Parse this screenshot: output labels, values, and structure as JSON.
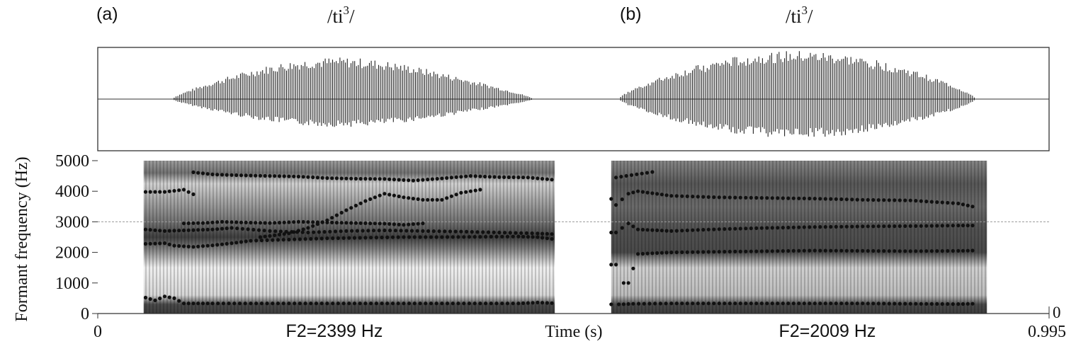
{
  "panels": [
    {
      "id": "a",
      "tag": "(a)",
      "word_base": "/ti",
      "word_sup": "3",
      "word_end": "/",
      "f2_label": "F2=2399 Hz",
      "formant_tracks": [
        [
          [
            0.05,
            520
          ],
          [
            0.06,
            430
          ],
          [
            0.07,
            560
          ],
          [
            0.08,
            500
          ],
          [
            0.09,
            330
          ],
          [
            0.12,
            330
          ],
          [
            0.16,
            330
          ],
          [
            0.2,
            330
          ],
          [
            0.24,
            330
          ],
          [
            0.28,
            330
          ],
          [
            0.32,
            330
          ],
          [
            0.36,
            330
          ],
          [
            0.4,
            330
          ],
          [
            0.44,
            330
          ],
          [
            0.46,
            360
          ],
          [
            0.475,
            340
          ]
        ],
        [
          [
            0.05,
            2280
          ],
          [
            0.07,
            2300
          ],
          [
            0.08,
            2220
          ],
          [
            0.1,
            2180
          ],
          [
            0.12,
            2230
          ],
          [
            0.14,
            2300
          ],
          [
            0.16,
            2380
          ],
          [
            0.2,
            2420
          ],
          [
            0.24,
            2460
          ],
          [
            0.28,
            2480
          ],
          [
            0.32,
            2500
          ],
          [
            0.36,
            2500
          ],
          [
            0.4,
            2510
          ],
          [
            0.44,
            2520
          ],
          [
            0.46,
            2500
          ],
          [
            0.475,
            2440
          ]
        ],
        [
          [
            0.05,
            2750
          ],
          [
            0.07,
            2700
          ],
          [
            0.09,
            2720
          ],
          [
            0.12,
            2750
          ],
          [
            0.14,
            2800
          ],
          [
            0.18,
            2700
          ],
          [
            0.22,
            2650
          ],
          [
            0.26,
            2700
          ],
          [
            0.3,
            2720
          ],
          [
            0.34,
            2700
          ],
          [
            0.38,
            2680
          ],
          [
            0.42,
            2650
          ],
          [
            0.46,
            2620
          ],
          [
            0.475,
            2600
          ]
        ],
        [
          [
            0.09,
            2950
          ],
          [
            0.11,
            2960
          ],
          [
            0.13,
            3000
          ],
          [
            0.15,
            2980
          ],
          [
            0.18,
            2960
          ],
          [
            0.21,
            3000
          ],
          [
            0.24,
            2980
          ],
          [
            0.27,
            2960
          ],
          [
            0.3,
            2940
          ],
          [
            0.32,
            2900
          ],
          [
            0.34,
            2950
          ]
        ],
        [
          [
            0.17,
            2500
          ],
          [
            0.2,
            2620
          ],
          [
            0.22,
            2800
          ],
          [
            0.24,
            3050
          ],
          [
            0.26,
            3380
          ],
          [
            0.28,
            3680
          ],
          [
            0.3,
            3920
          ],
          [
            0.32,
            3800
          ],
          [
            0.34,
            3720
          ],
          [
            0.36,
            3720
          ],
          [
            0.38,
            3950
          ],
          [
            0.4,
            4050
          ]
        ],
        [
          [
            0.05,
            3980
          ],
          [
            0.07,
            3980
          ],
          [
            0.09,
            4050
          ],
          [
            0.1,
            3900
          ]
        ],
        [
          [
            0.1,
            4620
          ],
          [
            0.12,
            4550
          ],
          [
            0.15,
            4520
          ],
          [
            0.18,
            4500
          ],
          [
            0.21,
            4480
          ],
          [
            0.24,
            4430
          ],
          [
            0.27,
            4410
          ],
          [
            0.3,
            4400
          ],
          [
            0.33,
            4350
          ],
          [
            0.36,
            4420
          ],
          [
            0.39,
            4500
          ],
          [
            0.42,
            4460
          ],
          [
            0.45,
            4450
          ],
          [
            0.475,
            4380
          ]
        ]
      ]
    },
    {
      "id": "b",
      "tag": "(b)",
      "word_base": "/ti",
      "word_sup": "3",
      "word_end": "/",
      "f2_label": "F2=2009 Hz",
      "formant_tracks": [
        [
          [
            0.537,
            300
          ],
          [
            0.545,
            300
          ],
          [
            0.56,
            320
          ],
          [
            0.6,
            330
          ],
          [
            0.65,
            330
          ],
          [
            0.7,
            330
          ],
          [
            0.75,
            330
          ],
          [
            0.8,
            330
          ],
          [
            0.85,
            320
          ],
          [
            0.9,
            310
          ],
          [
            0.915,
            320
          ]
        ],
        [
          [
            0.537,
            1600
          ],
          [
            0.542,
            1600
          ],
          [
            0.55,
            1000
          ],
          [
            0.555,
            1000
          ],
          [
            0.565,
            1950
          ],
          [
            0.6,
            2000
          ],
          [
            0.65,
            2020
          ],
          [
            0.7,
            2040
          ],
          [
            0.75,
            2060
          ],
          [
            0.8,
            2050
          ],
          [
            0.85,
            2040
          ],
          [
            0.9,
            2050
          ],
          [
            0.915,
            2060
          ]
        ],
        [
          [
            0.537,
            2650
          ],
          [
            0.542,
            2650
          ],
          [
            0.555,
            2950
          ],
          [
            0.565,
            2750
          ],
          [
            0.6,
            2700
          ],
          [
            0.65,
            2760
          ],
          [
            0.7,
            2800
          ],
          [
            0.75,
            2830
          ],
          [
            0.8,
            2850
          ],
          [
            0.85,
            2860
          ],
          [
            0.9,
            2880
          ],
          [
            0.915,
            2880
          ]
        ],
        [
          [
            0.537,
            3750
          ],
          [
            0.542,
            3550
          ],
          [
            0.555,
            3920
          ],
          [
            0.565,
            4000
          ],
          [
            0.6,
            3850
          ],
          [
            0.65,
            3800
          ],
          [
            0.7,
            3780
          ],
          [
            0.75,
            3760
          ],
          [
            0.8,
            3720
          ],
          [
            0.85,
            3700
          ],
          [
            0.9,
            3600
          ],
          [
            0.915,
            3500
          ]
        ],
        [
          [
            0.542,
            4450
          ],
          [
            0.58,
            4630
          ]
        ]
      ]
    }
  ],
  "chart_data": {
    "type": "scatter",
    "xlabel": "Time (s)",
    "ylabel": "Formant frequency (Hz)",
    "xlim": [
      0,
      0.995
    ],
    "ylim": [
      0,
      5000
    ],
    "x_tick_labels": [
      "0",
      "0.995"
    ],
    "y_ticks": [
      0,
      1000,
      2000,
      3000,
      4000,
      5000
    ],
    "y_tick_labels": [
      "0",
      "1000",
      "2000",
      "3000",
      "4000",
      "5000"
    ],
    "right_y_tick_label": "0",
    "reference_line_hz": 3000,
    "segments": [
      {
        "panel": "a",
        "waveform_start_s": 0.078,
        "waveform_end_s": 0.455,
        "spectrogram_start_s": 0.048,
        "spectrogram_end_s": 0.478,
        "f2_hz": 2399
      },
      {
        "panel": "b",
        "waveform_start_s": 0.545,
        "waveform_end_s": 0.918,
        "spectrogram_start_s": 0.537,
        "spectrogram_end_s": 0.93,
        "f2_hz": 2009
      }
    ],
    "colors": {
      "dots": "#111111",
      "reference_line": "#9a9a9a",
      "frame": "#333333"
    }
  }
}
